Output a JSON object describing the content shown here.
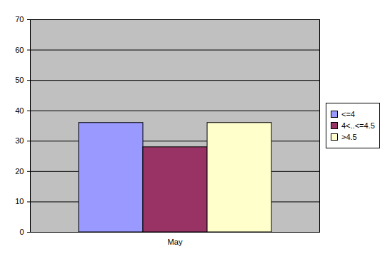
{
  "chart_data": {
    "type": "bar",
    "categories": [
      "May"
    ],
    "series": [
      {
        "name": "<=4",
        "color": "#9999ff",
        "values": [
          36
        ]
      },
      {
        "name": "4<..<=4.5",
        "color": "#993366",
        "values": [
          28
        ]
      },
      {
        "name": ">4.5",
        "color": "#ffffcc",
        "values": [
          36
        ]
      }
    ],
    "ylim": [
      0,
      70
    ],
    "yticks": [
      0,
      10,
      20,
      30,
      40,
      50,
      60,
      70
    ],
    "grid": true,
    "legend": "right"
  }
}
